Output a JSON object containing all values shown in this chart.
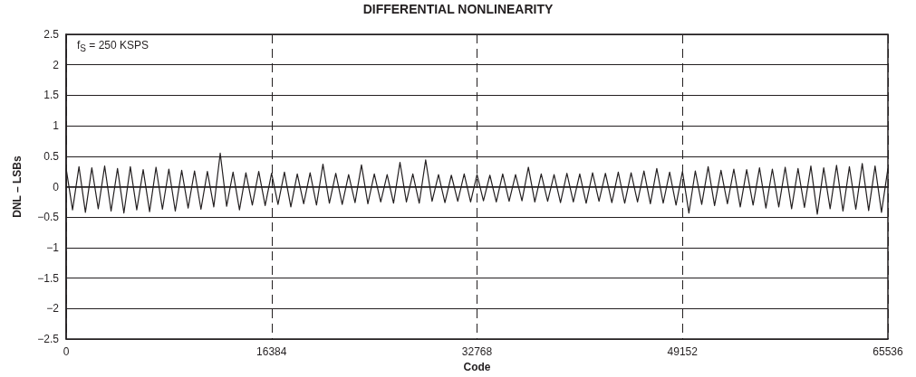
{
  "chart_data": {
    "type": "line",
    "title": "DIFFERENTIAL NONLINEARITY",
    "xlabel": "Code",
    "ylabel": "DNL – LSBs",
    "annotations": [
      "f$_{S}$ = 250 KSPS"
    ],
    "x": [
      0,
      512,
      1024,
      1536,
      2048,
      2560,
      3072,
      3584,
      4096,
      4608,
      5120,
      5632,
      6144,
      6656,
      7168,
      7680,
      8192,
      8704,
      9216,
      9728,
      10240,
      10752,
      11264,
      11776,
      12288,
      12800,
      13312,
      13824,
      14336,
      14848,
      15360,
      15872,
      16384,
      16896,
      17408,
      17920,
      18432,
      18944,
      19456,
      19968,
      20480,
      20992,
      21504,
      22016,
      22528,
      23040,
      23552,
      24064,
      24576,
      25088,
      25600,
      26112,
      26624,
      27136,
      27648,
      28160,
      28672,
      29184,
      29696,
      30208,
      30720,
      31232,
      31744,
      32256,
      32768,
      33280,
      33792,
      34304,
      34816,
      35328,
      35840,
      36352,
      36864,
      37376,
      37888,
      38400,
      38912,
      39424,
      39936,
      40448,
      40960,
      41472,
      41984,
      42496,
      43008,
      43520,
      44032,
      44544,
      45056,
      45568,
      46080,
      46592,
      47104,
      47616,
      48128,
      48640,
      49152,
      49664,
      50176,
      50688,
      51200,
      51712,
      52224,
      52736,
      53248,
      53760,
      54272,
      54784,
      55296,
      55808,
      56320,
      56832,
      57344,
      57856,
      58368,
      58880,
      59392,
      59904,
      60416,
      60928,
      61440,
      61952,
      62464,
      62976,
      63488,
      64000,
      64512,
      65024,
      65535
    ],
    "series": [
      {
        "color": "#231f20",
        "values": [
          0.3,
          -0.38,
          0.33,
          -0.42,
          0.31,
          -0.36,
          0.34,
          -0.4,
          0.3,
          -0.43,
          0.33,
          -0.38,
          0.28,
          -0.41,
          0.32,
          -0.37,
          0.29,
          -0.4,
          0.27,
          -0.35,
          0.26,
          -0.37,
          0.25,
          -0.33,
          0.55,
          -0.32,
          0.24,
          -0.38,
          0.23,
          -0.3,
          0.25,
          -0.31,
          0.22,
          -0.29,
          0.24,
          -0.33,
          0.21,
          -0.28,
          0.23,
          -0.3,
          0.37,
          -0.27,
          0.22,
          -0.29,
          0.2,
          -0.26,
          0.36,
          -0.28,
          0.21,
          -0.25,
          0.2,
          -0.27,
          0.4,
          -0.25,
          0.21,
          -0.27,
          0.44,
          -0.24,
          0.2,
          -0.26,
          0.19,
          -0.24,
          0.21,
          -0.25,
          0.2,
          -0.23,
          0.19,
          -0.25,
          0.21,
          -0.24,
          0.2,
          -0.23,
          0.32,
          -0.25,
          0.21,
          -0.24,
          0.2,
          -0.26,
          0.22,
          -0.25,
          0.21,
          -0.27,
          0.23,
          -0.24,
          0.22,
          -0.26,
          0.24,
          -0.27,
          0.23,
          -0.25,
          0.26,
          -0.28,
          0.3,
          -0.27,
          0.24,
          -0.3,
          0.25,
          -0.43,
          0.26,
          -0.29,
          0.33,
          -0.31,
          0.27,
          -0.28,
          0.29,
          -0.33,
          0.28,
          -0.3,
          0.31,
          -0.35,
          0.29,
          -0.33,
          0.32,
          -0.36,
          0.3,
          -0.34,
          0.34,
          -0.45,
          0.31,
          -0.36,
          0.35,
          -0.4,
          0.33,
          -0.37,
          0.38,
          -0.39,
          0.34,
          -0.42,
          0.3
        ]
      }
    ],
    "xlim": [
      0,
      65536
    ],
    "xticks": [
      0,
      16384,
      32768,
      49152,
      65536
    ],
    "ylim": [
      -2.5,
      2.5
    ],
    "yticks": [
      -2.5,
      -2,
      -1.5,
      -1,
      -0.5,
      0,
      0.5,
      1,
      1.5,
      2,
      2.5
    ],
    "grid": true,
    "marker": "none",
    "line_style": "solid"
  }
}
